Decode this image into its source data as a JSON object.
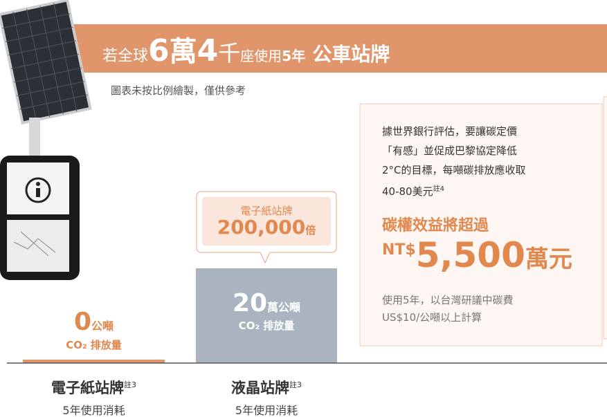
{
  "header": {
    "title_parts": [
      "若全球",
      "6",
      "萬",
      "4",
      "千",
      "座使用",
      "5年",
      "公車站牌"
    ]
  },
  "note": "圖表未按比例繪製，僅供參考",
  "epaper": {
    "value": "0",
    "unit": "公噸",
    "label": "CO₂ 排放量",
    "name": "電子紙站牌",
    "footnote": "註3",
    "sub": "5年使用消耗"
  },
  "lcd": {
    "value": "20",
    "unit": "萬公噸",
    "label": "CO₂ 排放量",
    "name": "液晶站牌",
    "footnote": "註3",
    "sub": "5年使用消耗"
  },
  "callout": {
    "title": "電子紙站牌",
    "value": "200,000",
    "unit": "倍"
  },
  "panel": {
    "text_lines": [
      "據世界銀行評估，要讓碳定價",
      "「有感」並促成巴黎協定降低",
      "2°C的目標，每噸碳排放應收取",
      "40-80美元"
    ],
    "footnote": "註4",
    "headline": "碳權效益將超過",
    "currency": "NT$",
    "amount": "5,500",
    "amount_unit": "萬元",
    "basis_lines": [
      "使用5年，以台灣研議中碳費",
      "US$10/公噸以上計算"
    ]
  }
}
